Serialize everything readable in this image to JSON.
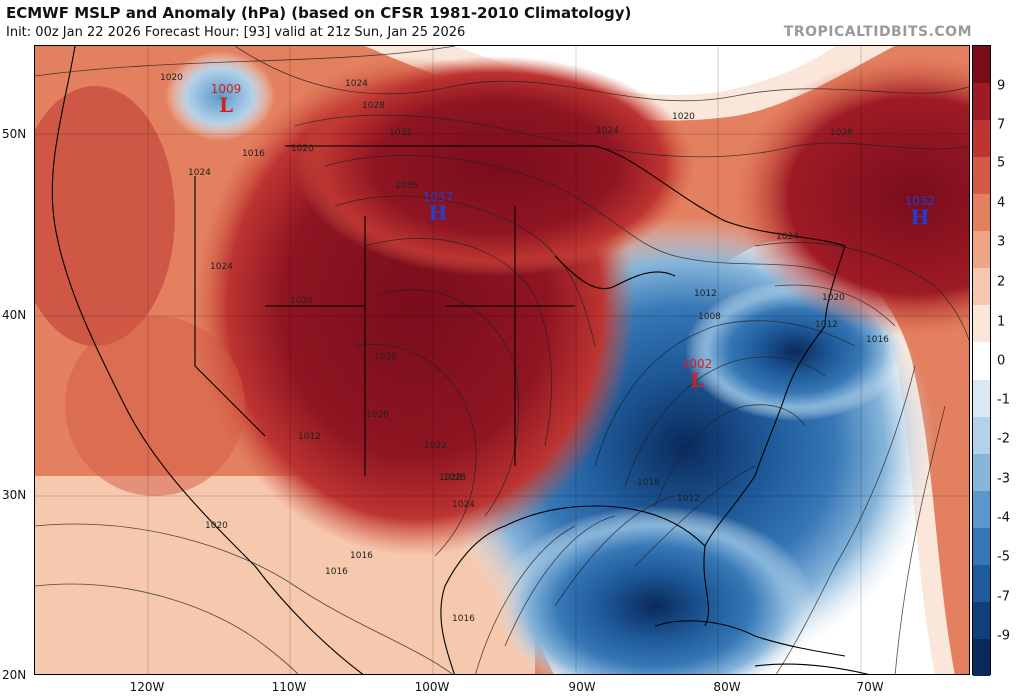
{
  "header": {
    "title": "ECMWF MSLP and Anomaly (hPa) (based on CFSR 1981-2010 Climatology)",
    "subtitle": "Init: 00z Jan 22 2026   Forecast Hour: [93]   valid at 21z Sun, Jan 25 2026",
    "credit": "TROPICALTIDBITS.COM"
  },
  "axes": {
    "lat_labels": [
      "50N",
      "40N",
      "30N",
      "20N"
    ],
    "lon_labels": [
      "120W",
      "110W",
      "100W",
      "90W",
      "80W",
      "70W"
    ]
  },
  "colorbar": {
    "labels": [
      "9",
      "7",
      "5",
      "4",
      "3",
      "2",
      "1",
      "0",
      "-1",
      "-2",
      "-3",
      "-4",
      "-5",
      "-7",
      "-9"
    ],
    "colors": [
      "#7a0d1c",
      "#9e1b25",
      "#bd3431",
      "#d35a44",
      "#e3805f",
      "#eea584",
      "#f6c9af",
      "#fbe6da",
      "#ffffff",
      "#d9e8f3",
      "#b3d1e8",
      "#86b5da",
      "#5a98cb",
      "#3677b6",
      "#1f5b9b",
      "#103f7a",
      "#0a2a5c"
    ]
  },
  "systems": [
    {
      "symbol": "L",
      "value": "1009",
      "color": "#d42020"
    },
    {
      "symbol": "H",
      "value": "1037",
      "color": "#1f3fd0"
    },
    {
      "symbol": "H",
      "value": "1032",
      "color": "#1f3fd0"
    },
    {
      "symbol": "L",
      "value": "1002",
      "color": "#d42020"
    }
  ],
  "isobar_labels": [
    "1020",
    "1024",
    "1028",
    "1032",
    "1036",
    "1024",
    "1020",
    "1016",
    "1024",
    "1020",
    "1028",
    "1024",
    "1020",
    "1012",
    "1008",
    "1012",
    "1016",
    "1012",
    "1016",
    "1020",
    "1024",
    "1028",
    "1032",
    "1028",
    "1024",
    "1020",
    "1016",
    "1012",
    "1020",
    "1016",
    "1016",
    "1020"
  ]
}
